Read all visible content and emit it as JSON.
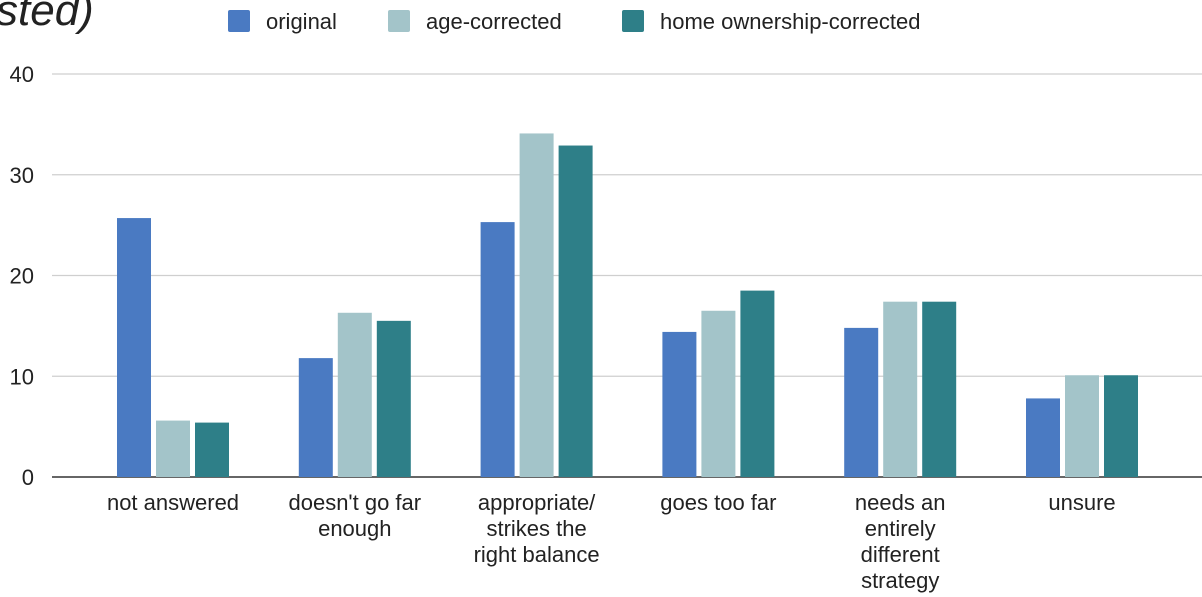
{
  "page": {
    "title_fragment": "sted)"
  },
  "chart_data": {
    "type": "bar",
    "title": "",
    "xlabel": "",
    "ylabel": "",
    "ylim": [
      0,
      40
    ],
    "yticks": [
      0,
      10,
      20,
      30,
      40
    ],
    "grid": true,
    "legend_position": "top",
    "categories": [
      [
        "not answered"
      ],
      [
        "doesn't go far",
        "enough"
      ],
      [
        "appropriate/",
        "strikes the",
        "right balance"
      ],
      [
        "goes too far"
      ],
      [
        "needs an",
        "entirely",
        "different",
        "strategy"
      ],
      [
        "unsure"
      ]
    ],
    "series": [
      {
        "name": "original",
        "color": "#4a7ac2",
        "values": [
          25.7,
          11.8,
          25.3,
          14.4,
          14.8,
          7.8
        ]
      },
      {
        "name": "age-corrected",
        "color": "#a3c4c9",
        "values": [
          5.6,
          16.3,
          34.1,
          16.5,
          17.4,
          10.1
        ]
      },
      {
        "name": "home ownership-corrected",
        "color": "#2e7f88",
        "values": [
          5.4,
          15.5,
          32.9,
          18.5,
          17.4,
          10.1
        ]
      }
    ]
  }
}
